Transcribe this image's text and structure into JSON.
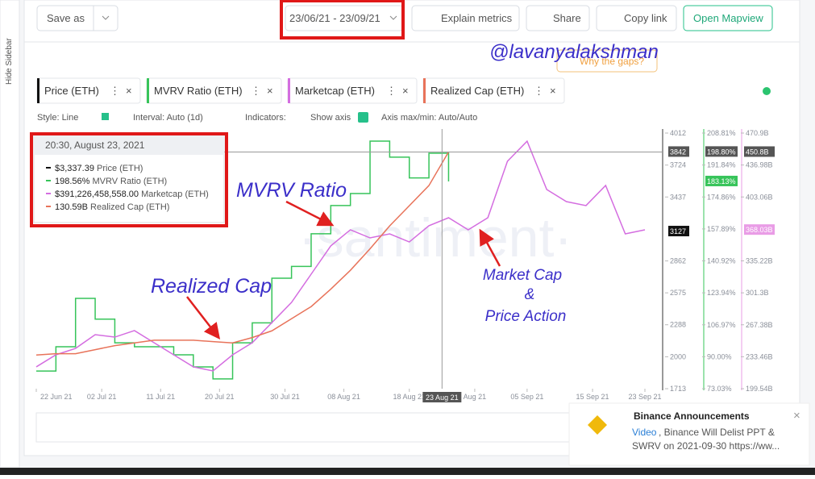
{
  "toolbar": {
    "save_as": "Save as",
    "date_range": "23/06/21 - 23/09/21",
    "buttons": [
      "Explain metrics",
      "Share",
      "Copy link",
      "Open Mapview"
    ]
  },
  "sidebar": {
    "toggle": "Hide Sidebar"
  },
  "overlay": {
    "handle": "@lavanyalakshman",
    "gaps": "Why the gaps?",
    "watermark": "·santiment·"
  },
  "metrics": [
    {
      "name": "Price (ETH)",
      "color": "#111111"
    },
    {
      "name": "MVRV Ratio (ETH)",
      "color": "#37c45a"
    },
    {
      "name": "Marketcap (ETH)",
      "color": "#d46de0"
    },
    {
      "name": "Realized Cap (ETH)",
      "color": "#e8735a"
    }
  ],
  "options": [
    "Style: Line",
    "Interval: Auto (1d)",
    "Indicators:",
    "Show axis",
    "Axis max/min: Auto/Auto"
  ],
  "tooltip": {
    "date": "20:30, August 23, 2021",
    "rows": [
      {
        "value": "$3,337.39",
        "label": "Price (ETH)"
      },
      {
        "value": "198.56%",
        "label": "MVRV Ratio (ETH)"
      },
      {
        "value": "$391,226,458,558.00",
        "label": "Marketcap (ETH)"
      },
      {
        "value": "130.59B",
        "label": "Realized Cap (ETH)"
      }
    ]
  },
  "annotations": [
    "MVRV Ratio",
    "Realized Cap",
    "Market Cap",
    "&",
    "Price Action"
  ],
  "notification": {
    "title": "Binance Announcements",
    "link": "Video",
    "text": ", Binance Will Delist PPT &",
    "text2": "SWRV on 2021-09-30 https://ww..."
  },
  "chart_data": {
    "type": "line",
    "x": [
      "22 Jun 21",
      "25 Jun 21",
      "28 Jun 21",
      "01 Jul 21",
      "04 Jul 21",
      "07 Jul 21",
      "10 Jul 21",
      "13 Jul 21",
      "16 Jul 21",
      "19 Jul 21",
      "22 Jul 21",
      "25 Jul 21",
      "28 Jul 21",
      "31 Jul 21",
      "03 Aug 21",
      "06 Aug 21",
      "09 Aug 21",
      "12 Aug 21",
      "15 Aug 21",
      "18 Aug 21",
      "21 Aug 21",
      "24 Aug 21",
      "27 Aug 21",
      "30 Aug 21",
      "02 Sep 21",
      "05 Sep 21",
      "08 Sep 21",
      "11 Sep 21",
      "14 Sep 21",
      "17 Sep 21",
      "20 Sep 21",
      "23 Sep 21"
    ],
    "xlim": [
      "22 Jun 21",
      "23 Sep 21"
    ],
    "xticks": [
      "22 Jun 21",
      "02 Jul 21",
      "11 Jul 21",
      "20 Jul 21",
      "30 Jul 21",
      "08 Aug 21",
      "18 Aug 21",
      {
        "value": "28 Aug 21",
        "label": "Aug 21"
      },
      "05 Sep 21",
      "15 Sep 21",
      "23 Sep 21"
    ],
    "series": [
      {
        "name": "MVRV Ratio (ETH)",
        "color": "#37c45a",
        "axis": "y2",
        "step": true,
        "values": [
          82.4,
          95.3,
          121,
          110,
          97.4,
          95.3,
          95.3,
          91,
          84.6,
          78.2,
          97.4,
          108,
          131.7,
          138,
          155.3,
          170.3,
          176.7,
          204.5,
          196,
          185,
          198.1,
          183.1,
          null,
          null,
          null,
          null,
          null,
          null,
          null,
          null,
          null,
          null
        ]
      },
      {
        "name": "Marketcap (ETH)",
        "color": "#d46de0",
        "axis": "y3",
        "values": [
          222.7,
          235.5,
          242.3,
          256.9,
          254.3,
          261.2,
          248.3,
          235.5,
          222.7,
          218.4,
          235.5,
          248.3,
          269.7,
          291.1,
          321.1,
          351.1,
          368.2,
          359.6,
          363.9,
          355.3,
          372.5,
          381,
          368.2,
          381,
          441,
          462.3,
          411,
          398.1,
          393.9,
          415.3,
          363.9,
          368.2
        ]
      },
      {
        "name": "Realized Cap (ETH)",
        "color": "#e8735a",
        "axis": "y4",
        "values": [
          115.5,
          115.6,
          115.6,
          115.9,
          116.2,
          116.4,
          116.6,
          116.6,
          116.6,
          116.5,
          116.4,
          116.8,
          117.3,
          118.2,
          119.1,
          120.4,
          121.8,
          123.4,
          125.1,
          126.6,
          128.1,
          130.6,
          null,
          null,
          null,
          null,
          null,
          null,
          null,
          null,
          null,
          null
        ]
      }
    ],
    "ylim": [
      1713,
      4012
    ],
    "yticks": [
      1713,
      2000,
      2288,
      2575,
      2862,
      3437,
      3724,
      4012
    ],
    "y2lim": [
      73.03,
      208.81
    ],
    "y2ticks": [
      {
        "value": 73.03,
        "label": "73.03%"
      },
      {
        "value": 90,
        "label": "90.00%"
      },
      {
        "value": 106.97,
        "label": "106.97%"
      },
      {
        "value": 123.94,
        "label": "123.94%"
      },
      {
        "value": 140.92,
        "label": "140.92%"
      },
      {
        "value": 157.89,
        "label": "157.89%"
      },
      {
        "value": 174.86,
        "label": "174.86%"
      },
      {
        "value": 191.84,
        "label": "191.84%"
      },
      {
        "value": 208.81,
        "label": "208.81%"
      }
    ],
    "y3lim": [
      199.54,
      470.9
    ],
    "y3ticks": [
      {
        "value": 199.54,
        "label": "199.54B"
      },
      {
        "value": 233.46,
        "label": "233.46B"
      },
      {
        "value": 267.38,
        "label": "267.38B"
      },
      {
        "value": 301.3,
        "label": "301.3B"
      },
      {
        "value": 335.22,
        "label": "335.22B"
      },
      {
        "value": 403.06,
        "label": "403.06B"
      },
      {
        "value": 436.98,
        "label": "436.98B"
      },
      {
        "value": 470.9,
        "label": "470.9B"
      }
    ],
    "y4lim": [
      113,
      132
    ],
    "crosshair": {
      "x": "23 Aug 21",
      "y": 3842,
      "y2": {
        "value": 198.8,
        "label": "198.80%"
      },
      "y3": {
        "value": 450.8,
        "label": "450.8B"
      }
    },
    "last": {
      "y": 3127,
      "y2": {
        "value": 183.13,
        "label": "183.13%"
      },
      "y3": {
        "value": 368.03,
        "label": "368.03B"
      }
    }
  }
}
